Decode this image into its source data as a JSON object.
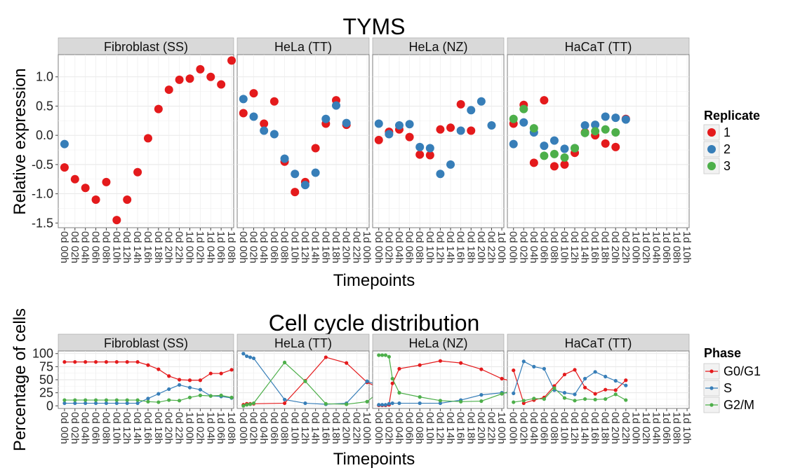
{
  "chart_data": [
    {
      "type": "scatter",
      "title": "TYMS",
      "xlabel": "Timepoints",
      "ylabel": "Relative expression",
      "yticks": [
        -1.5,
        -1.0,
        -0.5,
        0.0,
        0.5,
        1.0
      ],
      "ytick_labels": [
        "-1.5",
        "-1.0",
        "-0.5",
        "0.0",
        "0.5",
        "1.0"
      ],
      "ylim": [
        -1.58,
        1.38
      ],
      "grid": true,
      "legend": {
        "title": "Replicate",
        "position": "right",
        "labels": [
          "1",
          "2",
          "3"
        ]
      },
      "colors": {
        "1": "#e41a1c",
        "2": "#377eb8",
        "3": "#4daf4a"
      },
      "panels": [
        {
          "name": "Fibroblast (SS)",
          "x": [
            "0d 00h",
            "0d 02h",
            "0d 04h",
            "0d 06h",
            "0d 08h",
            "0d 10h",
            "0d 12h",
            "0d 14h",
            "0d 16h",
            "0d 18h",
            "0d 20h",
            "0d 22h",
            "1d 00h",
            "1d 02h",
            "1d 04h",
            "1d 06h",
            "1d 08h"
          ],
          "series": [
            {
              "name": "1",
              "values": [
                -0.55,
                -0.75,
                -0.9,
                -1.1,
                -0.8,
                -1.45,
                -1.1,
                -0.63,
                -0.05,
                0.45,
                0.78,
                0.95,
                0.97,
                1.13,
                1.0,
                0.87,
                1.28
              ]
            },
            {
              "name": "2",
              "values": [
                -0.15,
                null,
                null,
                null,
                null,
                null,
                null,
                null,
                null,
                null,
                null,
                null,
                null,
                null,
                null,
                null,
                null
              ]
            }
          ]
        },
        {
          "name": "HeLa (TT)",
          "x": [
            "0d 00h",
            "0d 02h",
            "0d 04h",
            "0d 06h",
            "0d 08h",
            "0d 10h",
            "0d 12h",
            "0d 14h",
            "0d 16h",
            "0d 18h",
            "0d 20h",
            "0d 22h",
            "1d 00h"
          ],
          "series": [
            {
              "name": "1",
              "values": [
                0.38,
                0.72,
                0.2,
                0.58,
                -0.45,
                -0.97,
                -0.8,
                -0.22,
                0.2,
                0.6,
                0.18,
                null,
                null
              ]
            },
            {
              "name": "2",
              "values": [
                0.62,
                0.32,
                0.08,
                0.02,
                -0.4,
                -0.66,
                -0.85,
                -0.64,
                0.28,
                0.51,
                0.21,
                null,
                null
              ]
            }
          ]
        },
        {
          "name": "HeLa (NZ)",
          "x": [
            "0d 00h",
            "0d 02h",
            "0d 04h",
            "0d 06h",
            "0d 08h",
            "0d 10h",
            "0d 12h",
            "0d 14h",
            "0d 16h",
            "0d 18h",
            "0d 20h",
            "0d 22h",
            "1d 00h"
          ],
          "series": [
            {
              "name": "1",
              "values": [
                -0.08,
                0.06,
                0.1,
                -0.03,
                -0.33,
                -0.34,
                0.1,
                0.13,
                0.53,
                0.08,
                null,
                null,
                null
              ]
            },
            {
              "name": "2",
              "values": [
                0.2,
                0.02,
                0.17,
                0.19,
                -0.2,
                -0.22,
                -0.66,
                -0.5,
                0.08,
                0.43,
                0.58,
                0.17,
                null
              ]
            }
          ]
        },
        {
          "name": "HaCaT (TT)",
          "x": [
            "0d 00h",
            "0d 02h",
            "0d 04h",
            "0d 06h",
            "0d 08h",
            "0d 10h",
            "0d 12h",
            "0d 14h",
            "0d 16h",
            "0d 18h",
            "0d 20h",
            "0d 22h",
            "1d 00h",
            "1d 02h",
            "1d 04h",
            "1d 06h",
            "1d 08h",
            "1d 10h"
          ],
          "series": [
            {
              "name": "1",
              "values": [
                0.2,
                0.52,
                -0.47,
                0.6,
                -0.53,
                -0.5,
                -0.3,
                0.05,
                0.0,
                -0.14,
                -0.2,
                0.28,
                null,
                null,
                null,
                null,
                null,
                null
              ]
            },
            {
              "name": "2",
              "values": [
                -0.15,
                0.22,
                0.05,
                -0.18,
                -0.09,
                -0.23,
                -0.22,
                0.17,
                0.18,
                0.32,
                0.3,
                0.27,
                null,
                null,
                null,
                null,
                null,
                null
              ]
            },
            {
              "name": "3",
              "values": [
                0.28,
                0.45,
                0.12,
                -0.35,
                -0.32,
                -0.38,
                -0.22,
                0.04,
                0.07,
                0.1,
                0.05,
                null,
                null,
                null,
                null,
                null,
                null,
                null
              ]
            }
          ]
        }
      ]
    },
    {
      "type": "line",
      "title": "Cell cycle distribution",
      "xlabel": "Timepoints",
      "ylabel": "Percentage of cells",
      "yticks": [
        0,
        25,
        50,
        75,
        100
      ],
      "ytick_labels": [
        "0",
        "25",
        "50",
        "75",
        "100"
      ],
      "ylim": [
        -5,
        105
      ],
      "grid": true,
      "legend": {
        "title": "Phase",
        "position": "right",
        "labels": [
          "G0/G1",
          "S",
          "G2/M"
        ]
      },
      "colors": {
        "G0/G1": "#e41a1c",
        "S": "#377eb8",
        "G2/M": "#4daf4a"
      },
      "panels": [
        {
          "name": "Fibroblast (SS)",
          "x": [
            "0d 00h",
            "0d 02h",
            "0d 04h",
            "0d 06h",
            "0d 08h",
            "0d 10h",
            "0d 12h",
            "0d 14h",
            "0d 16h",
            "0d 18h",
            "0d 20h",
            "0d 22h",
            "1d 00h",
            "1d 02h",
            "1d 04h",
            "1d 06h",
            "1d 08h"
          ],
          "series": [
            {
              "name": "G0/G1",
              "values": [
                84,
                84,
                84,
                84,
                84,
                84,
                84,
                84,
                78,
                70,
                57,
                50,
                49,
                49,
                62,
                62,
                69
              ]
            },
            {
              "name": "S",
              "values": [
                5,
                5,
                5,
                5,
                5,
                5,
                5,
                5,
                14,
                23,
                32,
                40,
                35,
                31,
                19,
                18,
                15
              ]
            },
            {
              "name": "G2/M",
              "values": [
                11,
                11,
                11,
                11,
                11,
                11,
                11,
                11,
                8,
                7,
                11,
                10,
                16,
                20,
                19,
                20,
                16
              ]
            }
          ]
        },
        {
          "name": "HeLa (TT)",
          "x": [
            "0d 00h",
            "0d 02h",
            "0d 04h",
            "0d 06h",
            "0d 08h",
            "0d 10h",
            "0d 12h",
            "0d 14h",
            "0d 16h",
            "0d 18h",
            "0d 20h",
            "0d 22h",
            "1d 00h"
          ],
          "series": [
            {
              "name": "G0/G1",
              "x_pos": [
                0,
                0.33,
                0.66,
                1,
                4,
                6,
                8,
                10,
                12,
                14,
                16
              ],
              "values": [
                2,
                4,
                4,
                4,
                5,
                48,
                93,
                82,
                45,
                27,
                45
              ]
            },
            {
              "name": "S",
              "x_pos": [
                0,
                0.33,
                0.66,
                1,
                4,
                6,
                8,
                10,
                12,
                14,
                16
              ],
              "values": [
                100,
                95,
                93,
                91,
                12,
                5,
                3,
                5,
                47,
                33,
                17
              ]
            },
            {
              "name": "G2/M",
              "x_pos": [
                0,
                0.33,
                0.66,
                1,
                4,
                6,
                8,
                10,
                12,
                14,
                16
              ],
              "values": [
                0,
                2,
                3,
                5,
                83,
                47,
                4,
                3,
                8,
                40,
                38
              ]
            }
          ]
        },
        {
          "name": "HeLa (NZ)",
          "x": [
            "0d 00h",
            "0d 02h",
            "0d 04h",
            "0d 06h",
            "0d 08h",
            "0d 10h",
            "0d 12h",
            "0d 14h",
            "0d 16h",
            "0d 18h",
            "0d 20h",
            "0d 22h",
            "1d 00h"
          ],
          "series": [
            {
              "name": "G0/G1",
              "x_pos": [
                0,
                0.33,
                0.66,
                1,
                1.33,
                2,
                4,
                6,
                8,
                10,
                12,
                14,
                16
              ],
              "values": [
                1,
                1,
                1,
                2,
                43,
                71,
                78,
                86,
                82,
                70,
                52,
                42,
                48
              ]
            },
            {
              "name": "S",
              "x_pos": [
                0,
                0.33,
                0.66,
                1,
                1.33,
                2,
                4,
                6,
                8,
                10,
                12,
                14,
                16
              ],
              "values": [
                2,
                2,
                2,
                4,
                5,
                5,
                5,
                5,
                11,
                21,
                25,
                24,
                13
              ]
            },
            {
              "name": "G2/M",
              "x_pos": [
                0,
                0.33,
                0.66,
                1,
                1.33,
                2,
                4,
                6,
                8,
                10,
                12,
                14,
                16
              ],
              "values": [
                97,
                97,
                97,
                94,
                52,
                25,
                17,
                10,
                8,
                9,
                23,
                35,
                38
              ]
            }
          ]
        },
        {
          "name": "HaCaT (TT)",
          "x": [
            "0d 00h",
            "0d 02h",
            "0d 04h",
            "0d 06h",
            "0d 08h",
            "0d 10h",
            "0d 12h",
            "0d 14h",
            "0d 16h",
            "0d 18h",
            "0d 20h",
            "0d 22h",
            "1d 00h",
            "1d 02h",
            "1d 04h",
            "1d 06h",
            "1d 08h",
            "1d 10h"
          ],
          "series": [
            {
              "name": "G0/G1",
              "values": [
                68,
                5,
                11,
                16,
                38,
                60,
                69,
                35,
                23,
                31,
                30,
                49
              ]
            },
            {
              "name": "S",
              "values": [
                24,
                85,
                75,
                71,
                30,
                25,
                22,
                52,
                65,
                56,
                48,
                39
              ]
            },
            {
              "name": "G2/M",
              "values": [
                7,
                10,
                14,
                13,
                34,
                15,
                10,
                13,
                12,
                13,
                22,
                11
              ]
            }
          ]
        }
      ]
    }
  ]
}
